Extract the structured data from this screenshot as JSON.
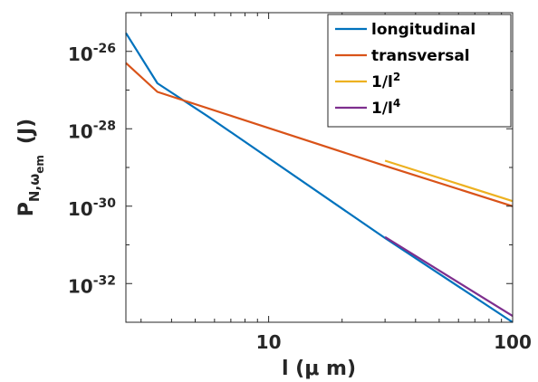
{
  "chart_data": {
    "type": "line",
    "x_scale": "log",
    "y_scale": "log",
    "xlim": [
      2.6,
      100
    ],
    "ylim": [
      1e-33,
      1e-25
    ],
    "xticks": [
      {
        "value": 10,
        "label": "10"
      },
      {
        "value": 100,
        "label": "100"
      }
    ],
    "yticks": [
      {
        "value": 1e-26,
        "base": "10",
        "exp": "-26"
      },
      {
        "value": 1e-28,
        "base": "10",
        "exp": "-28"
      },
      {
        "value": 1e-30,
        "base": "10",
        "exp": "-30"
      },
      {
        "value": 1e-32,
        "base": "10",
        "exp": "-32"
      }
    ],
    "xlabel": "l (μ m)",
    "ylabel": {
      "main": "P",
      "sub": "N,ω",
      "subsub": "em",
      "unit": "(J)"
    },
    "grid": false,
    "legend_position": "top-right",
    "series": [
      {
        "name": "longitudinal",
        "color": "#0072BD",
        "x": [
          2.6,
          3.5,
          5.7,
          30,
          100
        ],
        "y": [
          3e-26,
          1.5e-27,
          2e-28,
          1.5e-31,
          1e-33
        ]
      },
      {
        "name": "transversal",
        "color": "#D95319",
        "x": [
          2.6,
          3.5,
          30,
          100
        ],
        "y": [
          5e-27,
          9e-28,
          1.1e-29,
          1e-30
        ]
      },
      {
        "name": "1/l",
        "name_exp": "2",
        "color": "#EDB120",
        "x": [
          30,
          100
        ],
        "y": [
          1.5e-29,
          1.35e-30
        ]
      },
      {
        "name": "1/l",
        "name_exp": "4",
        "color": "#7E2F8E",
        "x": [
          30,
          100
        ],
        "y": [
          1.6e-31,
          1.45e-33
        ]
      }
    ]
  }
}
